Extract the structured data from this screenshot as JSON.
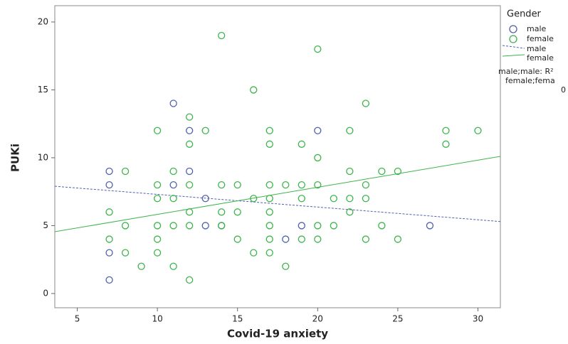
{
  "chart_data": {
    "type": "scatter",
    "xlabel": "Covid-19 anxiety",
    "ylabel": "PUKi",
    "xlim": [
      3.6,
      31.4
    ],
    "ylim": [
      -1.05,
      21.2
    ],
    "xticks": [
      5,
      10,
      15,
      20,
      25,
      30
    ],
    "yticks": [
      0,
      5,
      10,
      15,
      20
    ],
    "legend_title": "Gender",
    "series": [
      {
        "name": "male",
        "color": "#5060b0",
        "x": [
          7,
          7,
          7,
          7,
          11,
          11,
          12,
          12,
          13,
          13,
          14,
          18,
          19,
          20,
          27
        ],
        "y": [
          9,
          8,
          3,
          1,
          14,
          8,
          12,
          9,
          7,
          5,
          5,
          4,
          5,
          12,
          5
        ]
      },
      {
        "name": "female",
        "color": "#3db54a",
        "x": [
          7,
          7,
          8,
          8,
          8,
          9,
          10,
          10,
          10,
          10,
          10,
          10,
          11,
          11,
          11,
          11,
          12,
          12,
          12,
          12,
          12,
          12,
          13,
          14,
          14,
          14,
          14,
          15,
          15,
          15,
          16,
          16,
          16,
          17,
          17,
          17,
          17,
          17,
          17,
          17,
          17,
          18,
          18,
          19,
          19,
          19,
          19,
          20,
          20,
          20,
          20,
          20,
          21,
          21,
          22,
          22,
          22,
          22,
          23,
          23,
          23,
          23,
          24,
          24,
          25,
          25,
          28,
          28,
          30
        ],
        "y": [
          4,
          6,
          9,
          5,
          3,
          2,
          12,
          8,
          7,
          5,
          4,
          3,
          9,
          7,
          5,
          2,
          13,
          11,
          8,
          6,
          5,
          1,
          12,
          19,
          8,
          6,
          5,
          8,
          6,
          4,
          15,
          7,
          3,
          12,
          11,
          8,
          7,
          6,
          5,
          4,
          3,
          8,
          2,
          11,
          8,
          7,
          4,
          18,
          10,
          8,
          5,
          4,
          7,
          5,
          12,
          9,
          7,
          6,
          14,
          8,
          7,
          4,
          9,
          5,
          9,
          4,
          12,
          11,
          12
        ]
      }
    ],
    "fit_lines": [
      {
        "name": "male",
        "color": "#5060b0",
        "dashed": true,
        "x": [
          3.6,
          31.4
        ],
        "y": [
          7.9,
          5.3
        ]
      },
      {
        "name": "female",
        "color": "#3db54a",
        "dashed": false,
        "x": [
          3.6,
          31.4
        ],
        "y": [
          4.55,
          10.1
        ]
      }
    ],
    "r2_labels": [
      "male;male: R²",
      "female;fema",
      "0"
    ]
  }
}
